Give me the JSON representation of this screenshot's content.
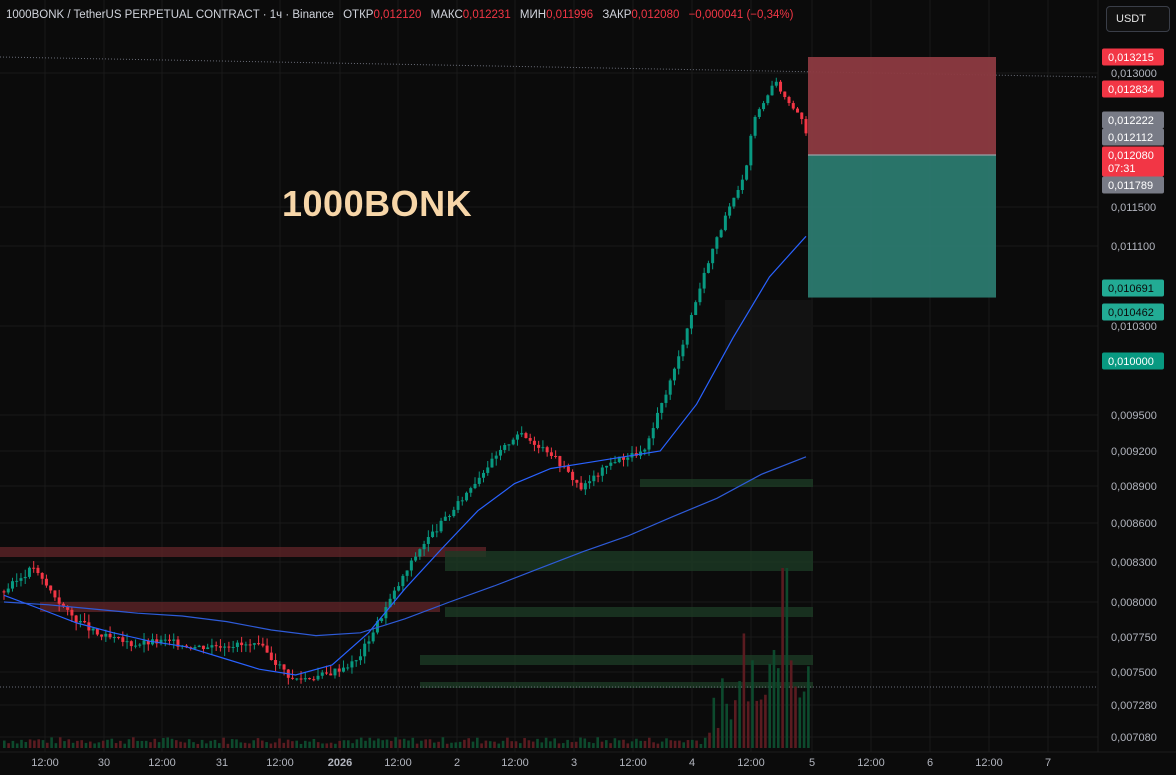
{
  "header": {
    "symbol": "1000BONK / TetherUS PERPETUAL CONTRACT · 1ч · Binance",
    "open_label": "ОТКР",
    "open_value": "0,012120",
    "high_label": "МАКС",
    "high_value": "0,012231",
    "low_label": "МИН",
    "low_value": "0,011996",
    "close_label": "ЗАКР",
    "close_value": "0,012080",
    "change": "−0,000041 (−0,34%)"
  },
  "currency_button": "USDT",
  "overlay_title": "1000BONK",
  "colors": {
    "background": "#0b0b0b",
    "up": "#089981",
    "down": "#f23645",
    "ma_fast": "#2962ff",
    "ma_slow": "#2e5bd8",
    "stop_zone": "#8d3a41",
    "target_zone": "#2b7a6f"
  },
  "chart_data": {
    "type": "candlestick",
    "x_tick_labels": [
      "12:00",
      "30",
      "12:00",
      "31",
      "12:00",
      "2026",
      "12:00",
      "2",
      "12:00",
      "3",
      "12:00",
      "4",
      "12:00",
      "5",
      "12:00",
      "6",
      "12:00",
      "7"
    ],
    "y_tick_labels": [
      "0,013000",
      "0,011500",
      "0,011100",
      "0,010300",
      "0,009500",
      "0,009200",
      "0,008900",
      "0,008600",
      "0,008300",
      "0,008000",
      "0,007750",
      "0,007500",
      "0,007280",
      "0,007080"
    ],
    "price_badges": [
      {
        "value": "0,013215",
        "color": "#f23645",
        "text_color": "#ffffff"
      },
      {
        "value": "0,012834",
        "color": "#f23645",
        "text_color": "#ffffff"
      },
      {
        "value": "0,012222",
        "color": "#787b86",
        "text_color": "#ffffff"
      },
      {
        "value": "0,012112",
        "color": "#787b86",
        "text_color": "#ffffff"
      },
      {
        "value": "0,012080",
        "sub": "07:31",
        "color": "#f23645",
        "text_color": "#ffffff"
      },
      {
        "value": "0,011789",
        "color": "#787b86",
        "text_color": "#ffffff"
      },
      {
        "value": "0,010691",
        "color": "#22ab94",
        "text_color": "#0b0b0b"
      },
      {
        "value": "0,010462",
        "color": "#22ab94",
        "text_color": "#0b0b0b"
      },
      {
        "value": "0,010000",
        "color": "#089981",
        "text_color": "#ffffff"
      }
    ],
    "position": {
      "type": "short",
      "entry": 0.01208,
      "stop": 0.013215,
      "target": 0.0106
    },
    "last_price": 0.01208,
    "high_reference": 0.013215,
    "low_reference": 0.00742,
    "ohlc_anchors": [
      [
        0.00808,
        0.00828
      ],
      [
        0.00822,
        0.00792
      ],
      [
        0.00792,
        0.00775
      ],
      [
        0.00776,
        0.0077
      ],
      [
        0.0077,
        0.00772
      ],
      [
        0.00772,
        0.00768
      ],
      [
        0.00768,
        0.0077
      ],
      [
        0.0077,
        0.00768
      ],
      [
        0.00768,
        0.00745
      ],
      [
        0.00745,
        0.00748
      ],
      [
        0.00748,
        0.00758
      ],
      [
        0.00758,
        0.008
      ],
      [
        0.008,
        0.00842
      ],
      [
        0.00842,
        0.0087
      ],
      [
        0.0087,
        0.00905
      ],
      [
        0.00905,
        0.00935
      ],
      [
        0.00935,
        0.0092
      ],
      [
        0.0092,
        0.00888
      ],
      [
        0.00888,
        0.00912
      ],
      [
        0.00912,
        0.0092
      ],
      [
        0.0092,
        0.01
      ],
      [
        0.01,
        0.011
      ],
      [
        0.011,
        0.0118
      ],
      [
        0.0118,
        0.01295
      ],
      [
        0.01295,
        0.01215
      ],
      [
        0.01215,
        0.01208
      ]
    ],
    "ma_fast": [
      0.00805,
      0.00795,
      0.00785,
      0.00778,
      0.00772,
      0.00768,
      0.0076,
      0.00752,
      0.00748,
      0.00755,
      0.00778,
      0.0081,
      0.0084,
      0.0087,
      0.00892,
      0.00905,
      0.0091,
      0.00915,
      0.0092,
      0.0096,
      0.0102,
      0.0108,
      0.0112
    ],
    "ma_slow": [
      0.008,
      0.00798,
      0.00795,
      0.00792,
      0.0079,
      0.00786,
      0.0078,
      0.00776,
      0.00778,
      0.00788,
      0.008,
      0.00812,
      0.00825,
      0.00838,
      0.0085,
      0.00865,
      0.0088,
      0.009,
      0.00915
    ],
    "xlabel": "",
    "ylabel": "",
    "grid": true
  }
}
